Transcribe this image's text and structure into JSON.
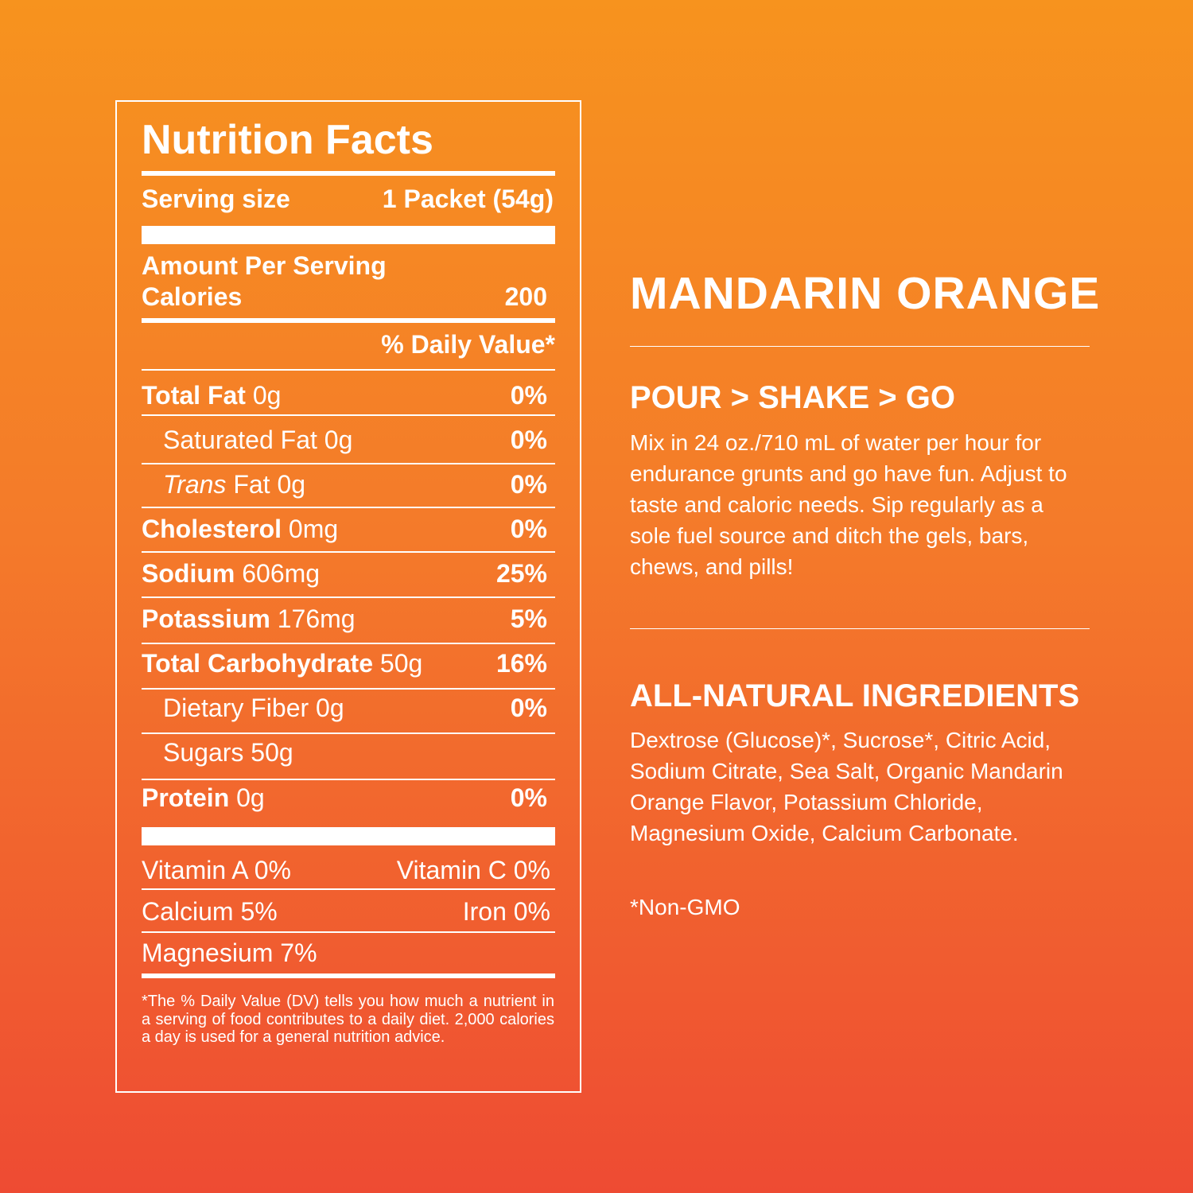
{
  "label": {
    "title": "Nutrition Facts",
    "serving_label": "Serving size",
    "serving_value": "1 Packet (54g)",
    "amount_per_serving": "Amount Per Serving",
    "calories_label": "Calories",
    "calories_value": "200",
    "dv_header": "% Daily Value*",
    "nutrients": [
      {
        "name": "Total Fat",
        "amount": "0g",
        "dv": "0%"
      },
      {
        "name": "Saturated Fat",
        "amount": "0g",
        "dv": "0%"
      },
      {
        "name": "Trans",
        "name_suffix": "Fat",
        "amount": "0g",
        "dv": "0%"
      },
      {
        "name": "Cholesterol",
        "amount": "0mg",
        "dv": "0%"
      },
      {
        "name": "Sodium",
        "amount": "606mg",
        "dv": "25%"
      },
      {
        "name": "Potassium",
        "amount": "176mg",
        "dv": "5%"
      },
      {
        "name": "Total Carbohydrate",
        "amount": "50g",
        "dv": "16%"
      },
      {
        "name": "Dietary Fiber",
        "amount": "0g",
        "dv": "0%"
      },
      {
        "name": "Sugars",
        "amount": "50g",
        "dv": ""
      },
      {
        "name": "Protein",
        "amount": "0g",
        "dv": "0%"
      }
    ],
    "vitamin_a": "Vitamin A 0%",
    "vitamin_c": "Vitamin C 0%",
    "calcium": "Calcium 5%",
    "iron": "Iron 0%",
    "magnesium": "Magnesium 7%",
    "footnote": "*The % Daily Value (DV) tells you how much a nutrient in a serving of food contributes to a daily diet. 2,000 calories a day is used for a general nutrition advice."
  },
  "product": {
    "name": "MANDARIN ORANGE",
    "directions_heading": "POUR > SHAKE > GO",
    "directions": "Mix in 24 oz./710 mL of water per hour for endurance grunts and go have fun. Adjust to taste and caloric needs. Sip regularly as a sole fuel source and ditch the gels, bars, chews, and pills!",
    "ingredients_heading": "ALL-NATURAL INGREDIENTS",
    "ingredients": "Dextrose (Glucose)*, Sucrose*, Citric Acid, Sodium Citrate, Sea Salt, Organic Mandarin Orange Flavor, Potassium Chloride, Magnesium Oxide, Calcium Carbonate.",
    "note": "*Non-GMO"
  },
  "colors": {
    "top": "#F7931E",
    "bottom": "#EE4B33",
    "text": "#FFFFFF"
  }
}
